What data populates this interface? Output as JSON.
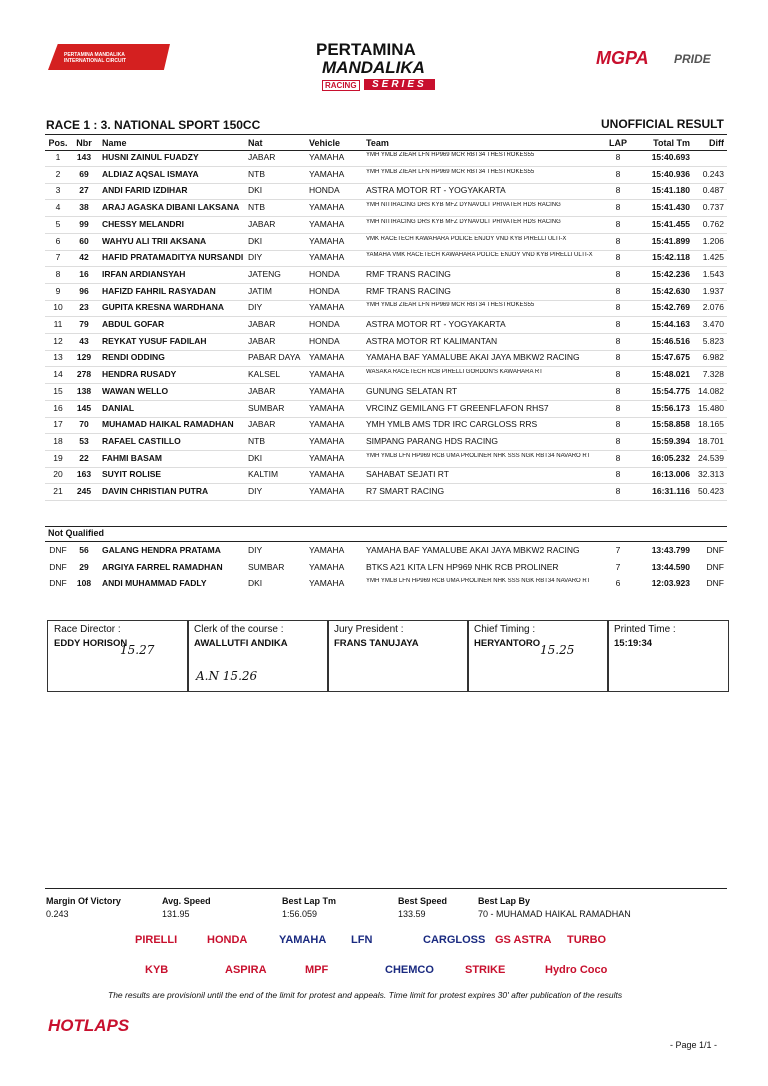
{
  "header": {
    "left_logo": "PERTAMINA MANDALIKA INTERNATIONAL CIRCUIT",
    "title_top": "PERTAMINA",
    "title_main": "MANDALIKA",
    "badge_left": "RACING",
    "badge_right": "SERIES",
    "right_logo_1": "MGPA",
    "right_logo_2": "PRIDE"
  },
  "race": {
    "title": "RACE 1 : 3. NATIONAL SPORT 150CC",
    "status": "UNOFFICIAL RESULT"
  },
  "table": {
    "columns": [
      "Pos.",
      "Nbr",
      "Name",
      "Nat",
      "Vehicle",
      "Team",
      "LAP",
      "Total Tm",
      "Diff"
    ],
    "rows": [
      [
        "1",
        "143",
        "HUSNI ZAINUL FUADZY",
        "JABAR",
        "YAMAHA",
        "YMH YMLB ZIEAR LFN HP969 MCR RBT34 THESTROKES55",
        "8",
        "15:40.693",
        null
      ],
      [
        "2",
        "69",
        "ALDIAZ AQSAL ISMAYA",
        "NTB",
        "YAMAHA",
        "YMH YMLB ZIEAR LFN HP969 MCR RBT34 THESTROKES55",
        "8",
        "15:40.936",
        "0.243"
      ],
      [
        "3",
        "27",
        "ANDI FARID IZDIHAR",
        "DKI",
        "HONDA",
        "ASTRA MOTOR RT - YOGYAKARTA",
        "8",
        "15:41.180",
        "0.487"
      ],
      [
        "4",
        "38",
        "ARAJ AGASKA DIBANI LAKSANA",
        "NTB",
        "YAMAHA",
        "YMH NITIRACING DRS KYB MFZ DYNAVOLT PRIVATER HDS RACING",
        "8",
        "15:41.430",
        "0.737"
      ],
      [
        "5",
        "99",
        "CHESSY MELANDRI",
        "JABAR",
        "YAMAHA",
        "YMH NITIRACING DRS KYB MFZ DYNAVOLT PRIVATER HDS RACING",
        "8",
        "15:41.455",
        "0.762"
      ],
      [
        "6",
        "60",
        "WAHYU ALI TRII AKSANA",
        "DKI",
        "YAMAHA",
        "VMK RACETECH KAWAHARA POLICE ENJOY VND KYB PIRELLI ULTI-X",
        "8",
        "15:41.899",
        "1.206"
      ],
      [
        "7",
        "42",
        "HAFID PRATAMADITYA NURSANDI",
        "DIY",
        "YAMAHA",
        "YAMAHA VMK RACETECH KAWAHARA POLICE ENJOY VND KYB PIRELLI ULTI-X",
        "8",
        "15:42.118",
        "1.425"
      ],
      [
        "8",
        "16",
        "IRFAN ARDIANSYAH",
        "JATENG",
        "HONDA",
        "RMF TRANS RACING",
        "8",
        "15:42.236",
        "1.543"
      ],
      [
        "9",
        "96",
        "HAFIZD FAHRIL RASYADAN",
        "JATIM",
        "HONDA",
        "RMF TRANS RACING",
        "8",
        "15:42.630",
        "1.937"
      ],
      [
        "10",
        "23",
        "GUPITA KRESNA WARDHANA",
        "DIY",
        "YAMAHA",
        "YMH YMLB ZIEAR LFN HP969 MCR RBT34 THESTROKES55",
        "8",
        "15:42.769",
        "2.076"
      ],
      [
        "11",
        "79",
        "ABDUL GOFAR",
        "JABAR",
        "HONDA",
        "ASTRA MOTOR RT - YOGYAKARTA",
        "8",
        "15:44.163",
        "3.470"
      ],
      [
        "12",
        "43",
        "REYKAT YUSUF FADILAH",
        "JABAR",
        "HONDA",
        "ASTRA MOTOR RT KALIMANTAN",
        "8",
        "15:46.516",
        "5.823"
      ],
      [
        "13",
        "129",
        "RENDI ODDING",
        "PABAR DAYA",
        "YAMAHA",
        "YAMAHA BAF YAMALUBE AKAI JAYA MBKW2 RACING",
        "8",
        "15:47.675",
        "6.982"
      ],
      [
        "14",
        "278",
        "HENDRA RUSADY",
        "KALSEL",
        "YAMAHA",
        "WASAKA RACETECH RCB PIRELLI GORDON'S KAWAHARA RT",
        "8",
        "15:48.021",
        "7.328"
      ],
      [
        "15",
        "138",
        "WAWAN WELLO",
        "JABAR",
        "YAMAHA",
        "GUNUNG SELATAN RT",
        "8",
        "15:54.775",
        "14.082"
      ],
      [
        "16",
        "145",
        "DANIAL",
        "SUMBAR",
        "YAMAHA",
        "VRCINZ GEMILANG FT GREENFLAFON RHS7",
        "8",
        "15:56.173",
        "15.480"
      ],
      [
        "17",
        "70",
        "MUHAMAD HAIKAL RAMADHAN",
        "JABAR",
        "YAMAHA",
        "YMH YMLB AMS TDR IRC CARGLOSS RRS",
        "8",
        "15:58.858",
        "18.165"
      ],
      [
        "18",
        "53",
        "RAFAEL CASTILLO",
        "NTB",
        "YAMAHA",
        "SIMPANG PARANG HDS RACING",
        "8",
        "15:59.394",
        "18.701"
      ],
      [
        "19",
        "22",
        "FAHMI BASAM",
        "DKI",
        "YAMAHA",
        "YMH YMLB LFN HP969 RCB UMA PROLINER NHK SSS NGK RBT34 NAVARO RT",
        "8",
        "16:05.232",
        "24.539"
      ],
      [
        "20",
        "163",
        "SUYIT ROLISE",
        "KALTIM",
        "YAMAHA",
        "SAHABAT SEJATI RT",
        "8",
        "16:13.006",
        "32.313"
      ],
      [
        "21",
        "245",
        "DAVIN CHRISTIAN PUTRA",
        "DIY",
        "YAMAHA",
        "R7 SMART RACING",
        "8",
        "16:31.116",
        "50.423"
      ]
    ]
  },
  "not_qualified": {
    "title": "Not Qualified",
    "rows": [
      [
        "DNF",
        "56",
        "GALANG HENDRA PRATAMA",
        "DIY",
        "YAMAHA",
        "YAMAHA BAF YAMALUBE AKAI JAYA MBKW2 RACING",
        "7",
        "13:43.799",
        "DNF"
      ],
      [
        "DNF",
        "29",
        "ARGIYA FARREL RAMADHAN",
        "SUMBAR",
        "YAMAHA",
        "BTKS A21 KITA LFN HP969 NHK RCB PROLINER",
        "7",
        "13:44.590",
        "DNF"
      ],
      [
        "DNF",
        "108",
        "ANDI MUHAMMAD FADLY",
        "DKI",
        "YAMAHA",
        "YMH YMLB LFN HP969 RCB UMA PROLINER NHK SSS NGK RBT34 NAVARO RT",
        "6",
        "12:03.923",
        "DNF"
      ]
    ]
  },
  "officials": [
    {
      "role": "Race Director :",
      "name": "EDDY HORISON",
      "note": "15.27"
    },
    {
      "role": "Clerk of the course :",
      "name": "AWALLUTFI ANDIKA",
      "note": "A.N 15.26"
    },
    {
      "role": "Jury President :",
      "name": "FRANS TANUJAYA"
    },
    {
      "role": "Chief Timing :",
      "name": "HERYANTORO",
      "note": "15.25"
    },
    {
      "role": "Printed Time :",
      "name": "15:19:34"
    }
  ],
  "stats": [
    {
      "label": "Margin Of Victory",
      "value": "0.243"
    },
    {
      "label": "Avg. Speed",
      "value": "131.95"
    },
    {
      "label": "Best Lap Tm",
      "value": "1:56.059"
    },
    {
      "label": "Best Speed",
      "value": "133.59"
    },
    {
      "label": "Best Lap By",
      "value": "70 - MUHAMAD HAIKAL RAMADHAN"
    }
  ],
  "sponsors": [
    "PIRELLI",
    "HONDA",
    "YAMAHA",
    "LFN",
    "CARGLOSS",
    "GS ASTRA",
    "TURBO",
    "KYB",
    "ASPIRA",
    "MPF",
    "CHEMCO",
    "STRIKE",
    "Hydro Coco"
  ],
  "footer": {
    "disclaimer": "The results are provisionil until the end of the limit for protest and appeals. Time limit for protest expires 30' after publication of the results",
    "logo": "HOTLAPS",
    "page": "- Page 1/1 -"
  }
}
